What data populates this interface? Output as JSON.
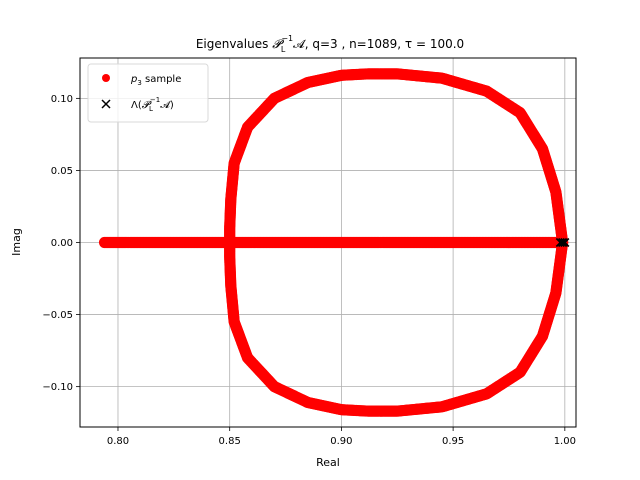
{
  "chart_data": {
    "type": "scatter",
    "title": {
      "prefix": "Eigenvalues ",
      "symbol": "𝓟",
      "symbol_sub": "L",
      "symbol_sup": "−1",
      "suffix": "𝓐, q=3 , n=1089, τ = 100.0"
    },
    "xlabel": "Real",
    "ylabel": "Imag",
    "xlim": [
      0.783,
      1.005
    ],
    "ylim": [
      -0.128,
      0.128
    ],
    "xticks": [
      0.8,
      0.85,
      0.9,
      0.95,
      1.0
    ],
    "xtick_labels": [
      "0.80",
      "0.85",
      "0.90",
      "0.95",
      "1.00"
    ],
    "yticks": [
      -0.1,
      -0.05,
      0.0,
      0.05,
      0.1
    ],
    "ytick_labels": [
      "−0.10",
      "−0.05",
      "0.00",
      "0.05",
      "0.10"
    ],
    "grid": true,
    "legend_position": "top-left",
    "series": [
      {
        "name_parts": {
          "prefix": "",
          "symbol": "p",
          "symbol_sub": "3",
          "suffix": " sample"
        },
        "marker": "circle",
        "color": "#ff0000",
        "segments": [
          {
            "shape": "line",
            "x": [
              0.794,
              0.998
            ],
            "y": [
              0.0,
              0.0
            ]
          },
          {
            "shape": "closed-curve",
            "x": [
              0.999,
              0.996,
              0.99,
              0.98,
              0.965,
              0.945,
              0.925,
              0.912,
              0.9,
              0.885,
              0.87,
              0.858,
              0.852,
              0.8505,
              0.85,
              0.85,
              0.8505,
              0.852,
              0.858,
              0.87,
              0.885,
              0.9,
              0.912,
              0.925,
              0.945,
              0.965,
              0.98,
              0.99,
              0.996,
              0.999
            ],
            "y": [
              0.0,
              0.035,
              0.065,
              0.09,
              0.105,
              0.114,
              0.117,
              0.117,
              0.116,
              0.111,
              0.1,
              0.08,
              0.055,
              0.03,
              0.01,
              -0.01,
              -0.03,
              -0.055,
              -0.08,
              -0.1,
              -0.111,
              -0.116,
              -0.117,
              -0.117,
              -0.114,
              -0.105,
              -0.09,
              -0.065,
              -0.035,
              0.0
            ]
          }
        ]
      },
      {
        "name_parts": {
          "prefix": "Λ(",
          "symbol": "𝓟",
          "symbol_sub": "L",
          "symbol_sup": "−1",
          "suffix": "𝓐)"
        },
        "marker": "x",
        "color": "#000000",
        "x": [
          0.998,
          0.999,
          1.0
        ],
        "y": [
          0.0,
          0.0,
          0.0
        ]
      }
    ]
  },
  "colors": {
    "grid": "#b0b0b0",
    "axes": "#000000",
    "legend_border": "#d9d9d9"
  }
}
